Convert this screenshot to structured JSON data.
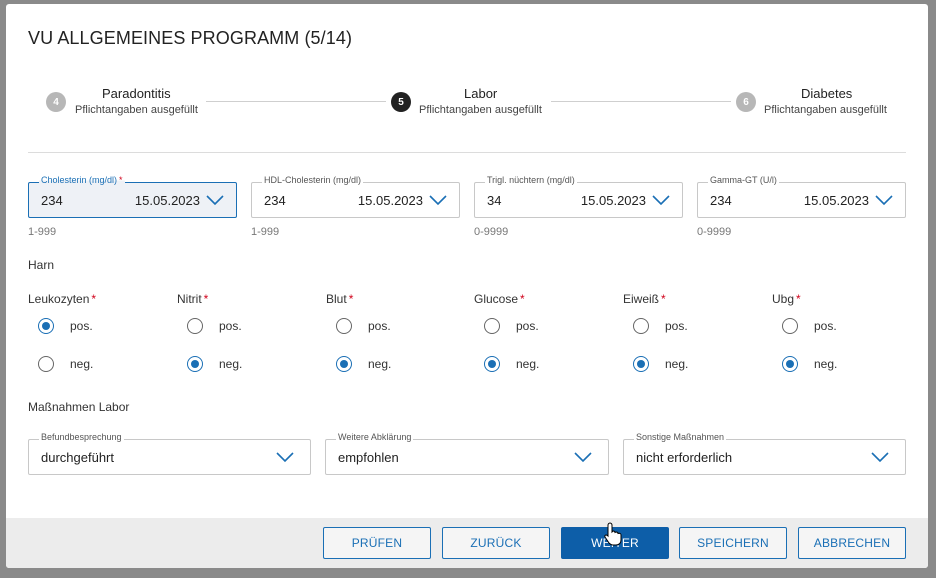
{
  "dialog": {
    "title": "VU ALLGEMEINES PROGRAMM (5/14)"
  },
  "stepper": [
    {
      "number": "4",
      "title": "Paradontitis",
      "subtitle": "Pflichtangaben ausgefüllt",
      "active": false
    },
    {
      "number": "5",
      "title": "Labor",
      "subtitle": "Pflichtangaben ausgefüllt",
      "active": true
    },
    {
      "number": "6",
      "title": "Diabetes",
      "subtitle": "Pflichtangaben ausgefüllt",
      "active": false
    }
  ],
  "lab_fields": [
    {
      "label": "Cholesterin (mg/dl)",
      "required": "*",
      "value": "234",
      "date": "15.05.2023",
      "range": "1-999"
    },
    {
      "label": "HDL-Cholesterin (mg/dl)",
      "value": "234",
      "date": "15.05.2023",
      "range": "1-999"
    },
    {
      "label": "Trigl. nüchtern (mg/dl)",
      "value": "34",
      "date": "15.05.2023",
      "range": "0-9999"
    },
    {
      "label": "Gamma-GT (U/l)",
      "value": "234",
      "date": "15.05.2023",
      "range": "0-9999"
    }
  ],
  "harn": {
    "heading": "Harn",
    "groups": [
      {
        "label": "Leukozyten",
        "required": "*",
        "selected": "pos."
      },
      {
        "label": "Nitrit",
        "required": "*",
        "selected": "neg."
      },
      {
        "label": "Blut",
        "required": "*",
        "selected": "neg."
      },
      {
        "label": "Glucose",
        "required": "*",
        "selected": "neg."
      },
      {
        "label": "Eiweiß",
        "required": "*",
        "selected": "neg."
      },
      {
        "label": "Ubg",
        "required": "*",
        "selected": "neg."
      }
    ],
    "options": [
      "pos.",
      "neg."
    ]
  },
  "massnahmen": {
    "heading": "Maßnahmen Labor",
    "selects": [
      {
        "label": "Befundbesprechung",
        "value": "durchgeführt"
      },
      {
        "label": "Weitere Abklärung",
        "value": "empfohlen"
      },
      {
        "label": "Sonstige Maßnahmen",
        "value": "nicht erforderlich"
      }
    ]
  },
  "footer": {
    "buttons": [
      {
        "label": "PRÜFEN",
        "primary": false
      },
      {
        "label": "ZURÜCK",
        "primary": false
      },
      {
        "label": "WEITER",
        "primary": true
      },
      {
        "label": "SPEICHERN",
        "primary": false
      },
      {
        "label": "ABBRECHEN",
        "primary": false
      }
    ]
  },
  "colors": {
    "accent": "#1a6fb5",
    "primary_button": "#0d5ea8",
    "required": "#d0021b"
  }
}
